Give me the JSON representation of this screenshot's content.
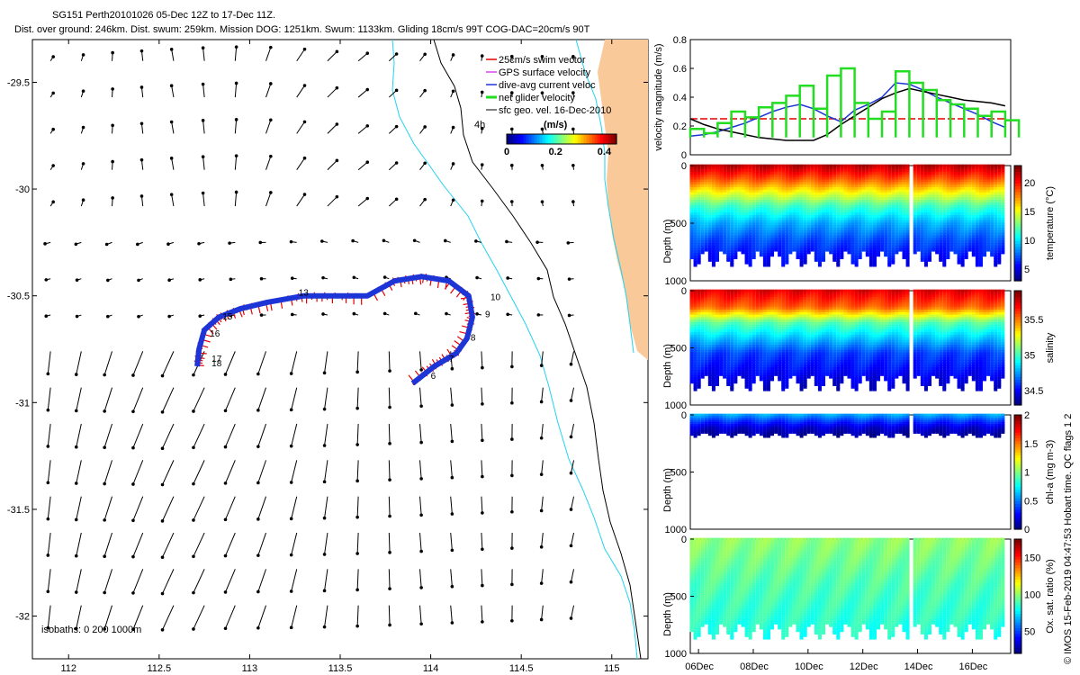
{
  "header": {
    "title_line1": "SG151 Perth20101026 05-Dec 12Z to 17-Dec 11Z.",
    "title_line2": "Dist. over ground: 246km. Dist. swum: 259km. Mission DOG: 1251km. Swum: 1133km. Gliding 18cm/s 99T COG-DAC=20cm/s 90T"
  },
  "footer_vertical": "© IMOS 15-Feb-2019 04:47:53 Hobart time. QC flags 1  2",
  "colors": {
    "land": "#f9c99a",
    "isobath": "#22d3ee",
    "swim_vector": "#e60000",
    "gps_surface": "#d946ef",
    "dive_avg": "#1d34d6",
    "net_glider": "#22dd22",
    "geo_vel": "#000000"
  },
  "chart_data": [
    {
      "type": "map",
      "xticks": [
        "112",
        "112.5",
        "113",
        "113.5",
        "114",
        "114.5",
        "115"
      ],
      "yticks": [
        "-29.5",
        "-30",
        "-30.5",
        "-31",
        "-31.5",
        "-32"
      ],
      "xlim": [
        111.8,
        115.2
      ],
      "ylim": [
        -32.2,
        -29.3
      ],
      "legend": {
        "placement": "top-right",
        "entries": [
          "25cm/s swim vector",
          "GPS surface velocity",
          "dive-avg current veloc",
          "net glider velocity",
          "sfc geo. vel. 16-Dec-2010"
        ]
      },
      "colorbar": {
        "label": "(m/s)",
        "ticks": [
          "0",
          "0.2",
          "0.4"
        ],
        "range": [
          0,
          0.45
        ]
      },
      "isobath_note": "isobaths: 0   200  1000m",
      "time_marker": "4h",
      "track_day_labels": [
        {
          "label": "6",
          "lon": 114.0,
          "lat": -30.89
        },
        {
          "label": "7",
          "lon": 114.1,
          "lat": -30.81
        },
        {
          "label": "8",
          "lon": 114.22,
          "lat": -30.71
        },
        {
          "label": "9",
          "lon": 114.3,
          "lat": -30.6
        },
        {
          "label": "10",
          "lon": 114.33,
          "lat": -30.52
        },
        {
          "label": "13",
          "lon": 113.27,
          "lat": -30.5
        },
        {
          "label": "15",
          "lon": 112.85,
          "lat": -30.61
        },
        {
          "label": "16",
          "lon": 112.78,
          "lat": -30.69
        },
        {
          "label": "17",
          "lon": 112.79,
          "lat": -30.81
        },
        {
          "label": "18",
          "lon": 112.79,
          "lat": -30.83
        }
      ],
      "track": [
        [
          113.9,
          -30.91
        ],
        [
          114.02,
          -30.83
        ],
        [
          114.14,
          -30.77
        ],
        [
          114.2,
          -30.7
        ],
        [
          114.23,
          -30.6
        ],
        [
          114.21,
          -30.5
        ],
        [
          114.1,
          -30.43
        ],
        [
          113.95,
          -30.41
        ],
        [
          113.8,
          -30.43
        ],
        [
          113.65,
          -30.5
        ],
        [
          113.5,
          -30.5
        ],
        [
          113.3,
          -30.5
        ],
        [
          113.1,
          -30.53
        ],
        [
          112.95,
          -30.56
        ],
        [
          112.83,
          -30.6
        ],
        [
          112.75,
          -30.66
        ],
        [
          112.72,
          -30.75
        ],
        [
          112.71,
          -30.83
        ]
      ]
    },
    {
      "type": "line",
      "ylabel": "velocity magnitude (m/s)",
      "ylim": [
        0,
        0.8
      ],
      "yticks": [
        "0",
        "0.2",
        "0.4",
        "0.6",
        "0.8"
      ],
      "x": [
        0,
        0.5,
        1,
        1.5,
        2,
        2.5,
        3,
        3.5,
        4,
        4.5,
        5,
        5.5,
        6,
        6.5,
        7,
        7.5,
        8,
        8.5,
        9,
        9.5,
        10,
        10.5,
        11,
        11.5
      ],
      "series": [
        {
          "color": "#e60000",
          "values": [
            0.25,
            0.25,
            0.25,
            0.25,
            0.25,
            0.25,
            0.25,
            0.25,
            0.25,
            0.25,
            0.25,
            0.25,
            0.25,
            0.25,
            0.25,
            0.25,
            0.25,
            0.25,
            0.25,
            0.25,
            0.25,
            0.25,
            0.25,
            0.25
          ]
        },
        {
          "color": "#1d34d6",
          "values": [
            0.13,
            0.14,
            0.16,
            0.19,
            0.22,
            0.26,
            0.3,
            0.33,
            0.35,
            0.32,
            0.27,
            0.23,
            0.31,
            0.35,
            0.4,
            0.5,
            0.49,
            0.45,
            0.4,
            0.36,
            0.32,
            0.28,
            0.23,
            0.19
          ]
        },
        {
          "color": "#000000",
          "values": [
            0.25,
            0.21,
            0.18,
            0.16,
            0.14,
            0.12,
            0.11,
            0.1,
            0.1,
            0.1,
            0.14,
            0.21,
            0.27,
            0.33,
            0.39,
            0.43,
            0.46,
            0.44,
            0.42,
            0.4,
            0.38,
            0.37,
            0.36,
            0.34
          ]
        },
        {
          "color": "#22dd22",
          "values": [
            0.18,
            0.15,
            0.22,
            0.3,
            0.26,
            0.33,
            0.36,
            0.41,
            0.48,
            0.32,
            0.55,
            0.6,
            0.36,
            0.25,
            0.3,
            0.58,
            0.5,
            0.45,
            0.38,
            0.35,
            0.32,
            0.27,
            0.3,
            0.24
          ]
        }
      ]
    },
    {
      "type": "heatmap",
      "ylabel": "Depth (m)",
      "ylim": [
        0,
        1000
      ],
      "yticks": [
        "0",
        "500",
        "1000"
      ],
      "colorbar_label": "temperature (°C)",
      "colorbar_ticks": [
        "5",
        "10",
        "15",
        "20"
      ],
      "clim": [
        3,
        23
      ],
      "profile_max_depth": 880,
      "gaps": [
        [
          3.4,
          3.5
        ],
        [
          8.0,
          8.1
        ]
      ],
      "color_profile": [
        [
          0,
          22
        ],
        [
          120,
          19
        ],
        [
          250,
          15
        ],
        [
          350,
          12
        ],
        [
          500,
          9
        ],
        [
          650,
          7
        ],
        [
          880,
          5
        ]
      ]
    },
    {
      "type": "heatmap",
      "ylabel": "Depth (m)",
      "ylim": [
        0,
        1000
      ],
      "yticks": [
        "0",
        "500",
        "1000"
      ],
      "colorbar_label": "salinity",
      "colorbar_ticks": [
        "34.5",
        "35",
        "35.5"
      ],
      "clim": [
        34.3,
        35.9
      ],
      "profile_max_depth": 880,
      "gaps": [
        [
          3.4,
          3.5
        ],
        [
          8.0,
          8.1
        ]
      ],
      "color_profile": [
        [
          0,
          35.75
        ],
        [
          150,
          35.55
        ],
        [
          280,
          35.05
        ],
        [
          400,
          34.85
        ],
        [
          550,
          34.6
        ],
        [
          880,
          34.4
        ]
      ]
    },
    {
      "type": "heatmap",
      "ylabel": "Depth (m)",
      "ylim": [
        0,
        1000
      ],
      "yticks": [
        "0",
        "500",
        "1000"
      ],
      "colorbar_label": "chl-a (mg m-3)",
      "colorbar_ticks": [
        "0",
        "0.5",
        "1",
        "1.5",
        "2"
      ],
      "clim": [
        0,
        2
      ],
      "profile_max_depth": 190,
      "gaps": [
        [
          3.4,
          3.5
        ],
        [
          8.0,
          8.1
        ]
      ],
      "color_profile": [
        [
          0,
          0.6
        ],
        [
          60,
          0.35
        ],
        [
          120,
          0.15
        ],
        [
          190,
          0.05
        ]
      ]
    },
    {
      "type": "heatmap",
      "ylabel": "Depth (m)",
      "ylim": [
        0,
        1000
      ],
      "yticks": [
        "0",
        "500",
        "1000"
      ],
      "colorbar_label": "Ox. sat. ratio (%)",
      "colorbar_ticks": [
        "50",
        "100",
        "150"
      ],
      "clim": [
        20,
        175
      ],
      "profile_max_depth": 880,
      "gaps": [
        [
          3.4,
          3.5
        ],
        [
          8.0,
          8.1
        ]
      ],
      "color_profile": [
        [
          0,
          100
        ],
        [
          200,
          95
        ],
        [
          400,
          90
        ],
        [
          700,
          85
        ],
        [
          880,
          82
        ]
      ]
    }
  ],
  "time_axis": {
    "labels": [
      "06Dec",
      "08Dec",
      "10Dec",
      "12Dec",
      "14Dec",
      "16Dec"
    ],
    "positions_days": [
      0.3,
      2.3,
      4.3,
      6.3,
      8.3,
      10.3
    ],
    "xlim": [
      0,
      11.7
    ]
  }
}
